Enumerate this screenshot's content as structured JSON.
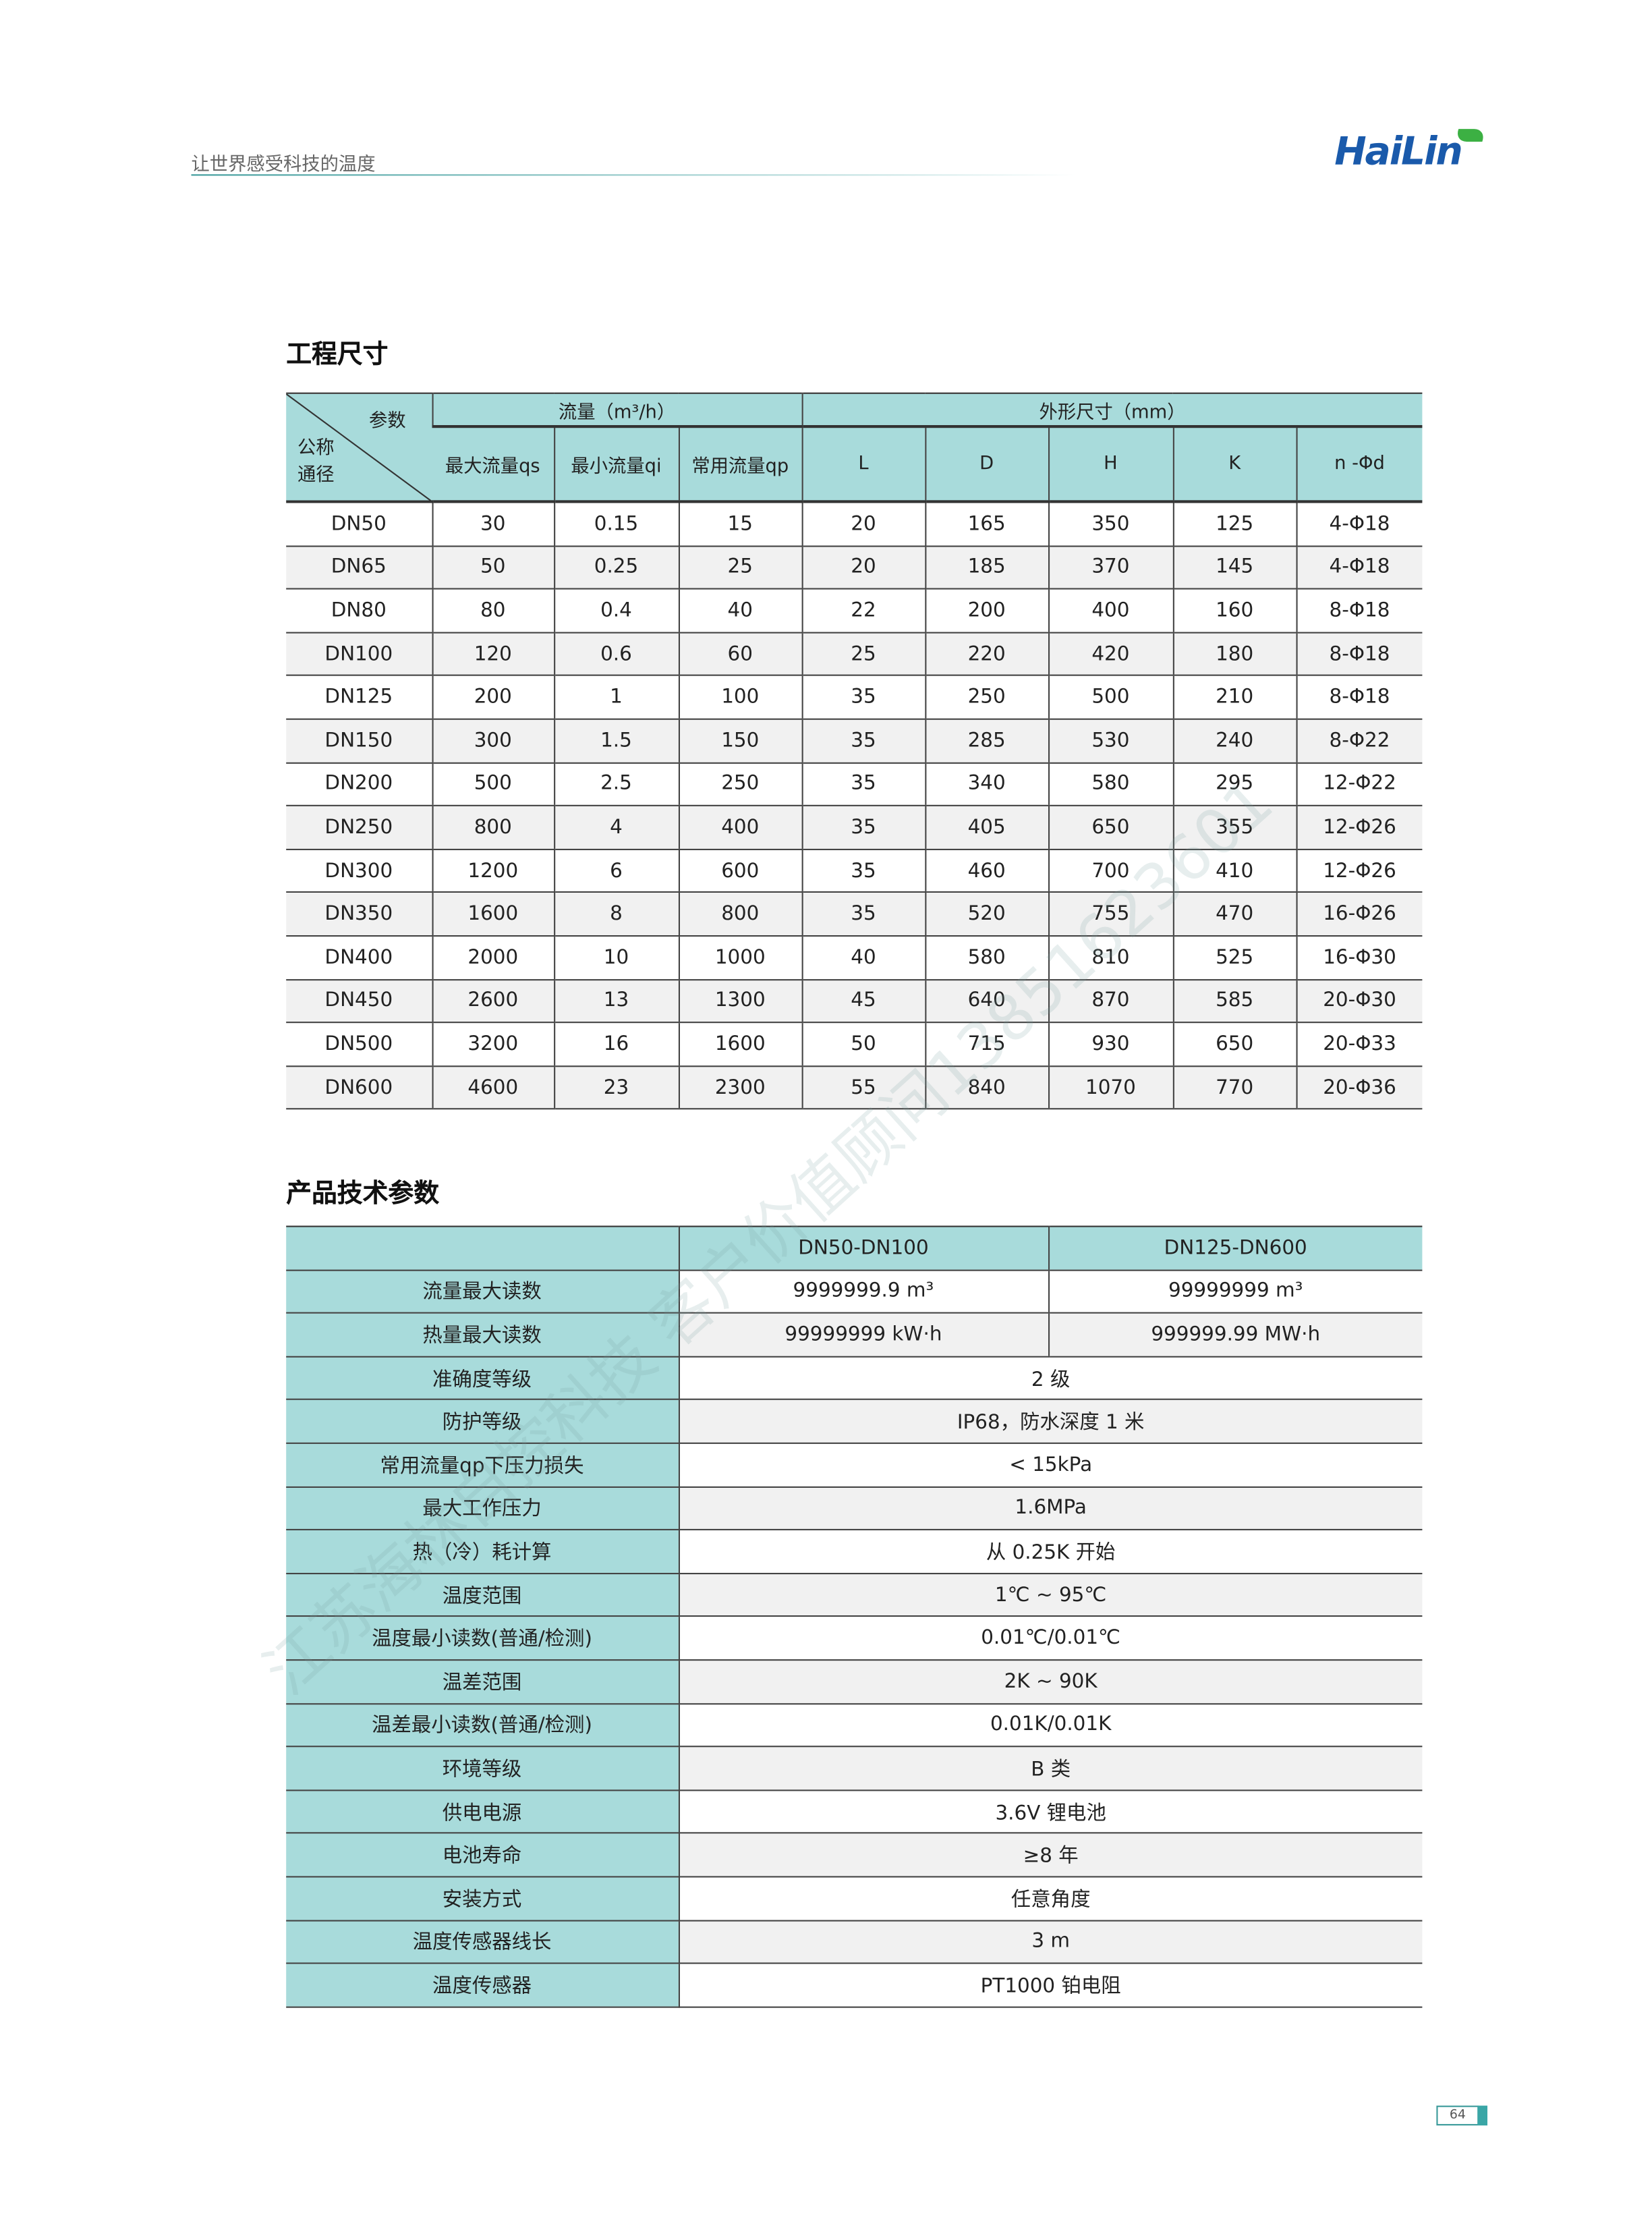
{
  "header": {
    "slogan": "让世界感受科技的温度",
    "logo": "HaiLin",
    "brand_color": "#1a5aab",
    "accent_color": "#a8dbdb"
  },
  "dims": {
    "title": "工程尺寸",
    "corner_top": "参数",
    "corner_bottom1": "公称",
    "corner_bottom2": "通径",
    "group_flow": "流量（m³/h）",
    "group_size": "外形尺寸（mm）",
    "columns": [
      "最大流量qs",
      "最小流量qi",
      "常用流量qp",
      "L",
      "D",
      "H",
      "K",
      "n -Φd"
    ],
    "rows": [
      [
        "DN50",
        "30",
        "0.15",
        "15",
        "20",
        "165",
        "350",
        "125",
        "4-Φ18"
      ],
      [
        "DN65",
        "50",
        "0.25",
        "25",
        "20",
        "185",
        "370",
        "145",
        "4-Φ18"
      ],
      [
        "DN80",
        "80",
        "0.4",
        "40",
        "22",
        "200",
        "400",
        "160",
        "8-Φ18"
      ],
      [
        "DN100",
        "120",
        "0.6",
        "60",
        "25",
        "220",
        "420",
        "180",
        "8-Φ18"
      ],
      [
        "DN125",
        "200",
        "1",
        "100",
        "35",
        "250",
        "500",
        "210",
        "8-Φ18"
      ],
      [
        "DN150",
        "300",
        "1.5",
        "150",
        "35",
        "285",
        "530",
        "240",
        "8-Φ22"
      ],
      [
        "DN200",
        "500",
        "2.5",
        "250",
        "35",
        "340",
        "580",
        "295",
        "12-Φ22"
      ],
      [
        "DN250",
        "800",
        "4",
        "400",
        "35",
        "405",
        "650",
        "355",
        "12-Φ26"
      ],
      [
        "DN300",
        "1200",
        "6",
        "600",
        "35",
        "460",
        "700",
        "410",
        "12-Φ26"
      ],
      [
        "DN350",
        "1600",
        "8",
        "800",
        "35",
        "520",
        "755",
        "470",
        "16-Φ26"
      ],
      [
        "DN400",
        "2000",
        "10",
        "1000",
        "40",
        "580",
        "810",
        "525",
        "16-Φ30"
      ],
      [
        "DN450",
        "2600",
        "13",
        "1300",
        "45",
        "640",
        "870",
        "585",
        "20-Φ30"
      ],
      [
        "DN500",
        "3200",
        "16",
        "1600",
        "50",
        "715",
        "930",
        "650",
        "20-Φ33"
      ],
      [
        "DN600",
        "4600",
        "23",
        "2300",
        "55",
        "840",
        "1070",
        "770",
        "20-Φ36"
      ]
    ]
  },
  "tech": {
    "title": "产品技术参数",
    "columns": [
      "",
      "DN50-DN100",
      "DN125-DN600"
    ],
    "split_rows": [
      [
        "流量最大读数",
        "9999999.9 m³",
        "99999999 m³"
      ],
      [
        "热量最大读数",
        "99999999 kW·h",
        "999999.99 MW·h"
      ]
    ],
    "rows": [
      [
        "准确度等级",
        "2 级"
      ],
      [
        "防护等级",
        "IP68，防水深度 1 米"
      ],
      [
        "常用流量qp下压力损失",
        "< 15kPa"
      ],
      [
        "最大工作压力",
        "1.6MPa"
      ],
      [
        "热（冷）耗计算",
        "从 0.25K 开始"
      ],
      [
        "温度范围",
        "1℃ ~ 95℃"
      ],
      [
        "温度最小读数(普通/检测)",
        "0.01℃/0.01℃"
      ],
      [
        "温差范围",
        "2K ~ 90K"
      ],
      [
        "温差最小读数(普通/检测)",
        "0.01K/0.01K"
      ],
      [
        "环境等级",
        "B 类"
      ],
      [
        "供电电源",
        "3.6V 锂电池"
      ],
      [
        "电池寿命",
        "≥8 年"
      ],
      [
        "安装方式",
        "任意角度"
      ],
      [
        "温度传感器线长",
        "3 m"
      ],
      [
        "温度传感器",
        "PT1000 铂电阻"
      ]
    ]
  },
  "watermark": "江苏海林自控科技  客户价值顾问13851623601",
  "page_number": "64"
}
